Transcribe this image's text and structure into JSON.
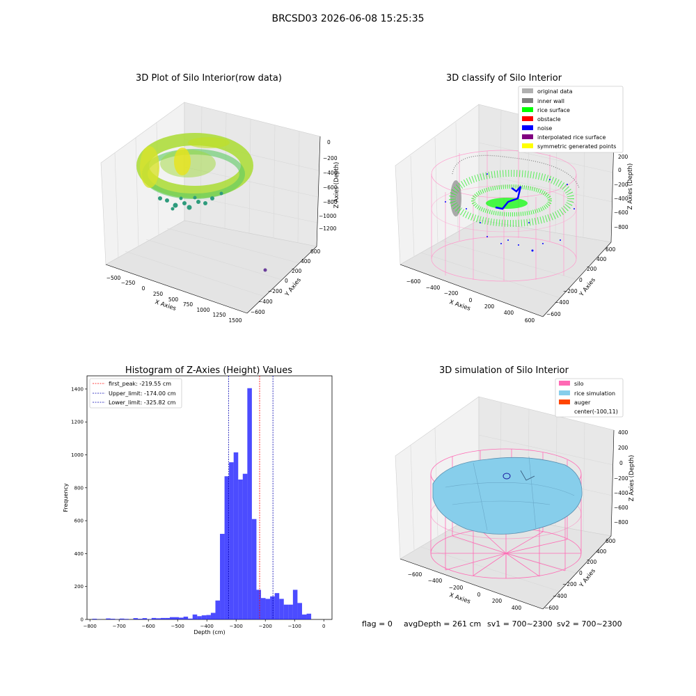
{
  "suptitle": "BRCSD03 2026-06-08 15:25:35",
  "footer": {
    "flag": "flag = 0",
    "avg_depth": "avgDepth = 261 cm",
    "sv1": "sv1 = 700~2300",
    "sv2": "sv2 = 700~2300"
  },
  "colors": {
    "hist_bar": "#0000ff",
    "peak_line": "#ff0000",
    "limit_line": "#0000b0",
    "pane": "#f2f2f2",
    "grid": "#d8d8d8"
  },
  "chart_data": [
    {
      "id": "raw",
      "type": "scatter3d",
      "title": "3D Plot of Silo Interior(row data)",
      "xlabel": "X Axies",
      "ylabel": "Y Axies",
      "zlabel": "Z Axies (Depth)",
      "x_ticks": [
        "−500",
        "−250",
        "0",
        "250",
        "500",
        "750",
        "1000",
        "1250",
        "1500"
      ],
      "y_ticks": [
        "−600",
        "−400",
        "−200",
        "0",
        "200",
        "400",
        "600"
      ],
      "z_ticks": [
        "0",
        "−200",
        "−400",
        "−600",
        "−800",
        "−1000",
        "−1200"
      ],
      "colormap": [
        "#440154",
        "#21918c",
        "#5ec962",
        "#aadc32",
        "#fde725"
      ]
    },
    {
      "id": "classify",
      "type": "scatter3d",
      "title": "3D classify of Silo Interior",
      "xlabel": "X Axies",
      "ylabel": "Y Axies",
      "zlabel": "Z Axies (Depth)",
      "x_ticks": [
        "−600",
        "−400",
        "−200",
        "0",
        "200",
        "400",
        "600"
      ],
      "y_ticks": [
        "−600",
        "−400",
        "−200",
        "0",
        "200",
        "400",
        "600"
      ],
      "z_ticks": [
        "200",
        "0",
        "−200",
        "−400",
        "−600",
        "−800"
      ],
      "legend": [
        {
          "label": "original data",
          "color": "#b0b0b0"
        },
        {
          "label": "inner wall",
          "color": "#808080"
        },
        {
          "label": "rice surface",
          "color": "#00ff00"
        },
        {
          "label": "obstacle",
          "color": "#ff0000"
        },
        {
          "label": "noise",
          "color": "#0000ff"
        },
        {
          "label": "interpolated rice surface",
          "color": "#800080"
        },
        {
          "label": "symmetric generated points",
          "color": "#ffff00"
        }
      ],
      "legend_position": "top-right"
    },
    {
      "id": "hist",
      "type": "bar",
      "title": "Histogram of Z-Axies (Height) Values",
      "xlabel": "Depth (cm)",
      "ylabel": "Frequency",
      "xlim": [
        -810,
        28
      ],
      "ylim": [
        0,
        1480
      ],
      "x_ticks": [
        -800,
        -700,
        -600,
        -500,
        -400,
        -300,
        -200,
        -100,
        0
      ],
      "y_ticks": [
        0,
        200,
        400,
        600,
        800,
        1000,
        1200,
        1400
      ],
      "bin_start": -792,
      "bin_width": 15.6,
      "values": [
        4,
        1,
        0,
        6,
        4,
        1,
        5,
        3,
        0,
        8,
        4,
        8,
        2,
        9,
        7,
        9,
        9,
        14,
        14,
        11,
        17,
        5,
        30,
        20,
        25,
        27,
        40,
        115,
        520,
        870,
        955,
        1015,
        850,
        885,
        1405,
        610,
        180,
        130,
        125,
        140,
        160,
        125,
        90,
        90,
        180,
        100,
        30,
        35
      ],
      "lines": [
        {
          "label": "first_peak: -219.55 cm",
          "x": -219.55,
          "color": "#ff0000"
        },
        {
          "label": "Upper_limit: -174.00 cm",
          "x": -174.0,
          "color": "#0000b0"
        },
        {
          "label": "Lower_limit: -325.82 cm",
          "x": -325.82,
          "color": "#0000b0"
        }
      ],
      "legend_position": "top-left"
    },
    {
      "id": "simulation",
      "type": "surface3d",
      "title": "3D simulation of Silo Interior",
      "xlabel": "X Axies",
      "ylabel": "Y Axies",
      "zlabel": "Z Axies (Depth)",
      "x_ticks": [
        "−600",
        "−400",
        "−200",
        "0",
        "200",
        "400"
      ],
      "y_ticks": [
        "−600",
        "−400",
        "−200",
        "0",
        "200",
        "400",
        "600"
      ],
      "z_ticks": [
        "400",
        "200",
        "0",
        "−200",
        "−400",
        "−600",
        "−800"
      ],
      "legend": [
        {
          "label": "silo",
          "color": "#ff69b4"
        },
        {
          "label": "rice simulation",
          "color": "#87ceeb"
        },
        {
          "label": "auger",
          "color": "#ff4500"
        },
        {
          "label": "center(-100,11)",
          "color": ""
        }
      ],
      "legend_position": "top-right"
    }
  ]
}
